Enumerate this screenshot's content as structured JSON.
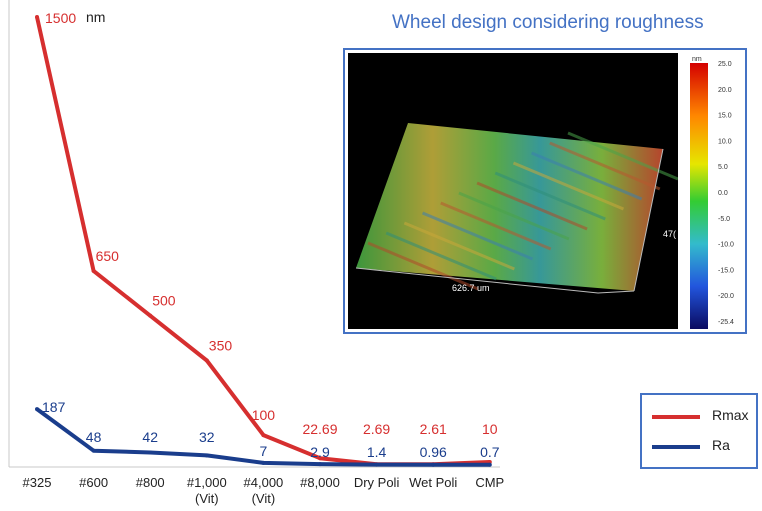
{
  "chart_data": {
    "type": "line",
    "unit": "nm",
    "categories": [
      [
        "#325"
      ],
      [
        "#600"
      ],
      [
        "#800"
      ],
      [
        "#1,000",
        "(Vit)"
      ],
      [
        "#4,000",
        "(Vit)"
      ],
      [
        "#8,000"
      ],
      [
        "Dry Poli"
      ],
      [
        "Wet Poli"
      ],
      [
        "CMP"
      ]
    ],
    "series": [
      {
        "name": "Rmax",
        "color": "#d62f2f",
        "values": [
          1500,
          650,
          500,
          350,
          100,
          22.69,
          2.69,
          2.61,
          10
        ],
        "labels": [
          "1500",
          "650",
          "500",
          "350",
          "100",
          "22.69",
          "2.69",
          "2.61",
          "10"
        ]
      },
      {
        "name": "Ra",
        "color": "#1a3d8c",
        "values": [
          187,
          48,
          42,
          32,
          7,
          2.9,
          1.4,
          0.96,
          0.7
        ],
        "labels": [
          "187",
          "48",
          "42",
          "32",
          "7",
          "2.9",
          "1.4",
          "0.96",
          "0.7"
        ]
      }
    ],
    "ylim": [
      0,
      1500
    ],
    "grid": false,
    "legend_position": "bottom-right"
  },
  "inset": {
    "title": "Wheel design considering roughness",
    "colorbar_unit": "nm",
    "colorbar_ticks": [
      "25.0",
      "20.0",
      "15.0",
      "10.0",
      "5.0",
      "0.0",
      "-5.0",
      "-10.0",
      "-15.0",
      "-20.0",
      "-25.4"
    ],
    "x_dimension": "626.7 um",
    "y_dimension": "47("
  },
  "colors": {
    "accent_border": "#4472c4",
    "rmax": "#d62f2f",
    "ra": "#1a3d8c"
  }
}
